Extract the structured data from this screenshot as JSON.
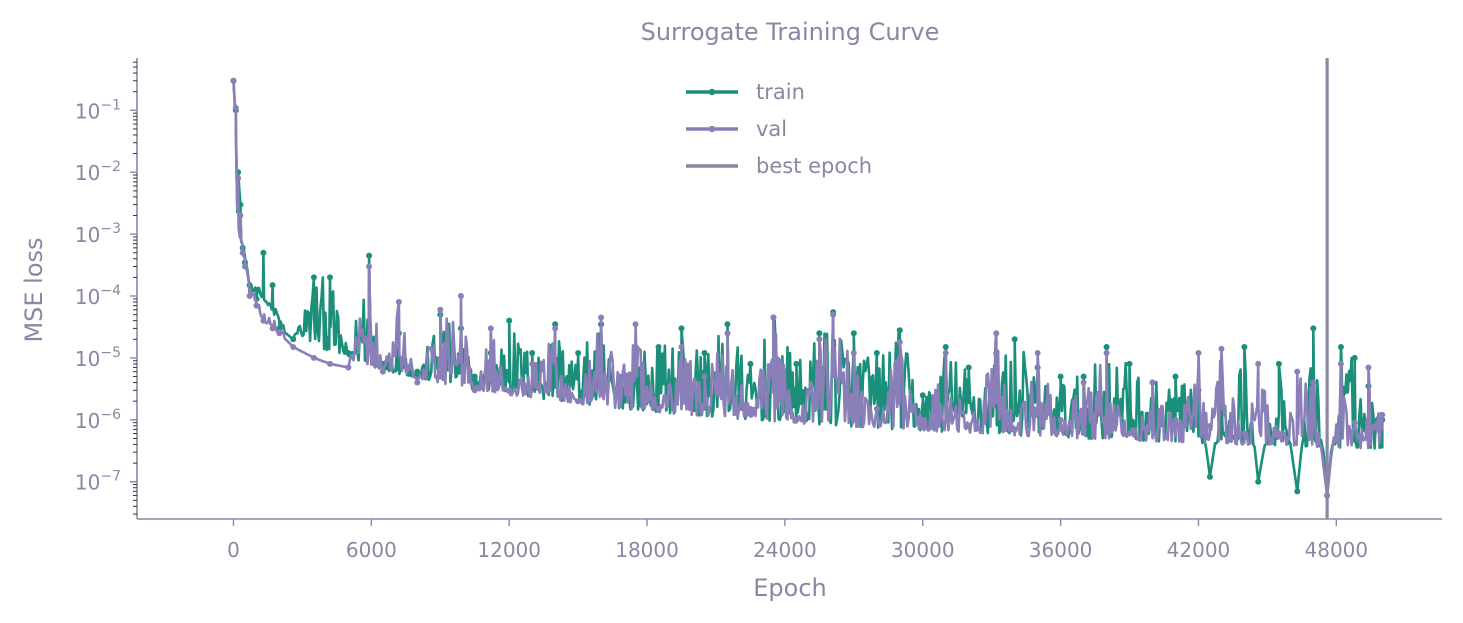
{
  "chart_data": {
    "type": "line",
    "title": "Surrogate Training Curve",
    "xlabel": "Epoch",
    "ylabel": "MSE loss",
    "yscale": "log",
    "xlim": [
      -4200,
      52600
    ],
    "ylim": [
      2.5e-08,
      0.7
    ],
    "xticks": [
      0,
      6000,
      12000,
      18000,
      24000,
      30000,
      36000,
      42000,
      48000
    ],
    "xtick_labels": [
      "0",
      "6000",
      "12000",
      "18000",
      "24000",
      "30000",
      "36000",
      "42000",
      "48000"
    ],
    "yticks": [
      1e-07,
      1e-06,
      1e-05,
      0.0001,
      0.001,
      0.01,
      0.1
    ],
    "ytick_labels": [
      {
        "base": "10",
        "exp": "−7"
      },
      {
        "base": "10",
        "exp": "−6"
      },
      {
        "base": "10",
        "exp": "−5"
      },
      {
        "base": "10",
        "exp": "−4"
      },
      {
        "base": "10",
        "exp": "−3"
      },
      {
        "base": "10",
        "exp": "−2"
      },
      {
        "base": "10",
        "exp": "−1"
      }
    ],
    "grid": false,
    "legend_position": "top-center",
    "best_epoch": 47600,
    "series": [
      {
        "name": "train",
        "color": "#1b8f7a",
        "x": [
          0,
          100,
          200,
          300,
          400,
          500,
          700,
          1000,
          1300,
          1700,
          2000,
          2600,
          3500,
          4200,
          5000,
          5900,
          6500,
          7200,
          8000,
          9000,
          9900,
          10500,
          11200,
          12000,
          13000,
          14000,
          15000,
          16000,
          16800,
          17500,
          18500,
          19500,
          20500,
          21500,
          22500,
          23500,
          24500,
          25500,
          26100,
          27000,
          28000,
          29000,
          30000,
          31000,
          32000,
          33200,
          34000,
          35000,
          36000,
          37000,
          38000,
          39000,
          40000,
          41000,
          42000,
          42500,
          43000,
          44000,
          44600,
          45500,
          46300,
          47000,
          47600,
          48200,
          48800,
          49400,
          50000
        ],
        "y": [
          0.3,
          0.1,
          0.01,
          0.003,
          0.0006,
          0.00035,
          0.00015,
          9e-05,
          0.0005,
          0.00015,
          3e-05,
          2e-05,
          0.0002,
          0.0002,
          1.2e-05,
          0.00045,
          8e-06,
          2.5e-05,
          6e-06,
          5e-05,
          3e-05,
          5e-06,
          1.2e-05,
          4e-05,
          1.2e-05,
          3.5e-05,
          1.2e-05,
          3.5e-05,
          5e-06,
          1.5e-05,
          1.5e-05,
          3e-05,
          1.2e-05,
          3.5e-05,
          8e-06,
          4.5e-05,
          8e-06,
          2.5e-05,
          5.5e-05,
          2.5e-05,
          1.2e-05,
          2.8e-05,
          2.5e-06,
          1.5e-05,
          7e-06,
          1.2e-05,
          2e-05,
          7e-06,
          5e-06,
          5e-06,
          1.5e-05,
          8e-06,
          4e-06,
          5e-06,
          3e-06,
          1.2e-07,
          2e-06,
          1.5e-05,
          1e-07,
          8e-06,
          7e-08,
          3e-05,
          6e-08,
          1.5e-05,
          1e-05,
          3.5e-06,
          1e-06
        ]
      },
      {
        "name": "val",
        "color": "#8a7fb8",
        "x": [
          0,
          100,
          200,
          300,
          400,
          500,
          700,
          1000,
          1300,
          1700,
          2000,
          2600,
          3500,
          4200,
          5000,
          5900,
          6500,
          7200,
          8000,
          9000,
          9900,
          10500,
          11200,
          12000,
          13000,
          14000,
          15000,
          16000,
          16800,
          17500,
          18500,
          19500,
          20500,
          21500,
          22500,
          23500,
          24500,
          25500,
          26100,
          27000,
          28000,
          29000,
          30000,
          31000,
          32000,
          33200,
          34000,
          35000,
          36000,
          37000,
          38000,
          39000,
          40000,
          41000,
          42000,
          42500,
          43000,
          44000,
          44600,
          45500,
          46300,
          47000,
          47600,
          48200,
          48800,
          49400,
          50000
        ],
        "y": [
          0.3,
          0.11,
          0.008,
          0.002,
          0.0005,
          0.0003,
          0.0001,
          7e-05,
          4e-05,
          3e-05,
          2.5e-05,
          1.5e-05,
          1e-05,
          8e-06,
          7e-06,
          0.0003,
          6e-06,
          8e-05,
          4e-06,
          6e-05,
          0.0001,
          3e-06,
          3e-05,
          3e-06,
          8e-06,
          3e-05,
          2e-06,
          4.5e-05,
          5e-06,
          3.5e-05,
          1.5e-06,
          1.5e-05,
          5e-06,
          2.5e-05,
          1.5e-06,
          4.5e-05,
          1e-06,
          2e-05,
          5e-05,
          1.2e-05,
          1.5e-06,
          1.8e-05,
          1e-06,
          1.2e-05,
          8e-07,
          2.5e-05,
          7e-07,
          1.2e-05,
          1e-06,
          4e-06,
          1.2e-05,
          6e-07,
          4e-06,
          1e-06,
          1.2e-05,
          8e-07,
          1.4e-05,
          6e-07,
          8e-06,
          6e-07,
          6e-06,
          4e-06,
          6e-08,
          8e-06,
          9e-07,
          7e-06,
          1.2e-06
        ]
      }
    ]
  },
  "legend": {
    "items": [
      {
        "label": "train",
        "color": "#1b8f7a",
        "marker": true
      },
      {
        "label": "val",
        "color": "#8a7fb8",
        "marker": true
      },
      {
        "label": "best epoch",
        "color": "#8a87a3",
        "marker": false
      }
    ]
  },
  "colors": {
    "axis": "#8a87a3",
    "text": "#8a87a3",
    "train": "#1b8f7a",
    "val": "#8a7fb8",
    "best_line": "#8a87a3"
  }
}
